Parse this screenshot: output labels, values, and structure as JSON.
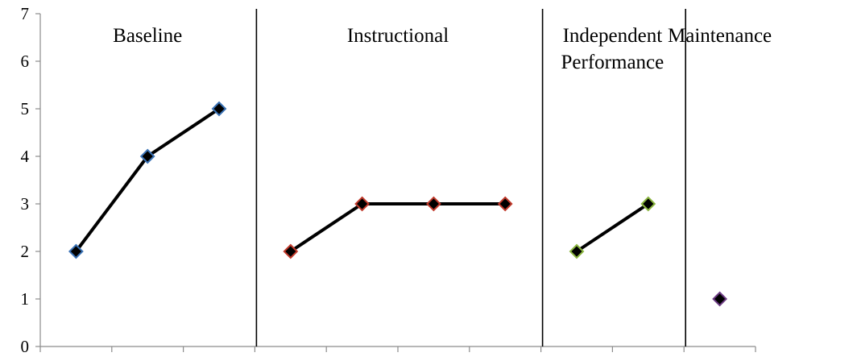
{
  "chart_data": {
    "type": "line",
    "title": "",
    "xlabel": "",
    "ylabel": "",
    "ylim": [
      0,
      7
    ],
    "yticks": [
      "0",
      "1",
      "2",
      "3",
      "4",
      "5",
      "6",
      "7"
    ],
    "x_slots": 10,
    "grid": false,
    "legend": "none",
    "phase_change_after_slots": [
      3,
      7,
      9
    ],
    "phases": [
      {
        "label_lines": [
          "Baseline"
        ],
        "marker_edge": "#3a72b5",
        "x": [
          1,
          2,
          3
        ],
        "y": [
          2,
          4,
          5
        ],
        "connected": true
      },
      {
        "label_lines": [
          "Instructional"
        ],
        "marker_edge": "#c0392b",
        "x": [
          4,
          5,
          6,
          7
        ],
        "y": [
          2,
          3,
          3,
          3
        ],
        "connected": true
      },
      {
        "label_lines": [
          "Independent",
          "Performance"
        ],
        "marker_edge": "#8ab53f",
        "x": [
          8,
          9
        ],
        "y": [
          2,
          3
        ],
        "connected": true
      },
      {
        "label_lines": [
          "Maintenance"
        ],
        "marker_edge": "#6b3a82",
        "x": [
          10
        ],
        "y": [
          1
        ],
        "connected": false
      }
    ]
  }
}
